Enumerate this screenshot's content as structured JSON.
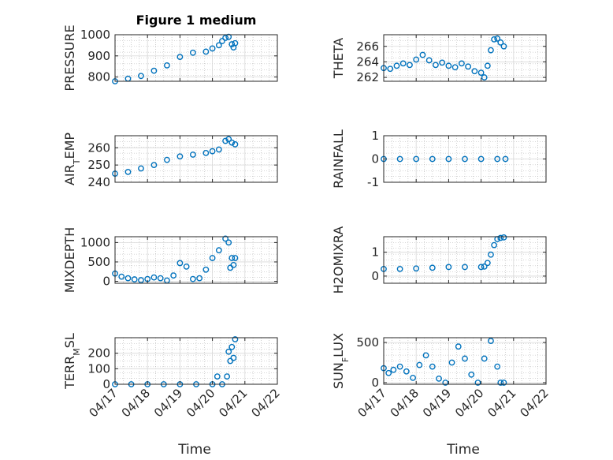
{
  "figure": {
    "title": "Figure 1 medium",
    "xlabel": "Time",
    "marker_color": "#0072BD",
    "grid_color": "#b0b0b0"
  },
  "chart_data": [
    {
      "type": "scatter",
      "ylabel": "PRESSURE",
      "ylim": [
        780,
        1000
      ],
      "yticks": [
        800,
        900,
        1000
      ],
      "x": [
        0.0,
        0.4,
        0.8,
        1.2,
        1.6,
        2.0,
        2.4,
        2.8,
        3.0,
        3.2,
        3.3,
        3.4,
        3.5,
        3.6,
        3.65,
        3.7
      ],
      "y": [
        780,
        792,
        805,
        830,
        855,
        895,
        915,
        920,
        935,
        950,
        970,
        985,
        990,
        955,
        940,
        960
      ]
    },
    {
      "type": "scatter",
      "ylabel": "THETA",
      "ylim": [
        261.5,
        267.5
      ],
      "yticks": [
        262,
        264,
        266
      ],
      "x": [
        0.0,
        0.2,
        0.4,
        0.6,
        0.8,
        1.0,
        1.2,
        1.4,
        1.6,
        1.8,
        2.0,
        2.2,
        2.4,
        2.6,
        2.8,
        3.0,
        3.1,
        3.2,
        3.3,
        3.4,
        3.5,
        3.6,
        3.7
      ],
      "y": [
        263.2,
        263.1,
        263.5,
        263.8,
        263.6,
        264.3,
        264.9,
        264.2,
        263.6,
        263.9,
        263.5,
        263.3,
        263.8,
        263.4,
        262.8,
        262.6,
        262.0,
        263.5,
        265.5,
        266.9,
        267.0,
        266.5,
        266.0
      ]
    },
    {
      "type": "scatter",
      "ylabel": "AIR_TEMP",
      "ylim": [
        240,
        267
      ],
      "yticks": [
        240,
        250,
        260
      ],
      "x": [
        0.0,
        0.4,
        0.8,
        1.2,
        1.6,
        2.0,
        2.4,
        2.8,
        3.0,
        3.2,
        3.4,
        3.5,
        3.6,
        3.7
      ],
      "y": [
        245,
        246,
        248,
        250,
        253,
        255,
        256,
        257,
        258,
        259,
        264,
        265,
        263,
        262
      ]
    },
    {
      "type": "scatter",
      "ylabel": "RAINFALL",
      "ylim": [
        -1,
        1
      ],
      "yticks": [
        -1,
        0,
        1
      ],
      "x": [
        0.0,
        0.5,
        1.0,
        1.5,
        2.0,
        2.5,
        3.0,
        3.5,
        3.75
      ],
      "y": [
        0,
        0,
        0,
        0,
        0,
        0,
        0,
        0,
        0
      ]
    },
    {
      "type": "scatter",
      "ylabel": "MIXDEPTH",
      "ylim": [
        -50,
        1150
      ],
      "yticks": [
        0,
        500,
        1000
      ],
      "x": [
        0.0,
        0.2,
        0.4,
        0.6,
        0.8,
        1.0,
        1.2,
        1.4,
        1.6,
        1.8,
        2.0,
        2.2,
        2.4,
        2.6,
        2.8,
        3.0,
        3.2,
        3.4,
        3.5,
        3.55,
        3.6,
        3.65,
        3.7
      ],
      "y": [
        200,
        120,
        80,
        50,
        30,
        60,
        100,
        80,
        20,
        150,
        470,
        380,
        60,
        80,
        300,
        600,
        800,
        1100,
        1000,
        350,
        600,
        420,
        600
      ]
    },
    {
      "type": "scatter",
      "ylabel": "H2OMIXRA",
      "ylim": [
        -0.3,
        1.65
      ],
      "yticks": [
        0,
        1
      ],
      "x": [
        0.0,
        0.5,
        1.0,
        1.5,
        2.0,
        2.5,
        3.0,
        3.1,
        3.2,
        3.3,
        3.4,
        3.5,
        3.6,
        3.7
      ],
      "y": [
        0.3,
        0.3,
        0.32,
        0.35,
        0.38,
        0.38,
        0.38,
        0.4,
        0.55,
        0.9,
        1.3,
        1.55,
        1.6,
        1.62
      ]
    },
    {
      "type": "scatter",
      "ylabel": "TERR_MSL",
      "ylim": [
        0,
        300
      ],
      "yticks": [
        0,
        100,
        200
      ],
      "x": [
        0.0,
        0.5,
        1.0,
        1.5,
        2.0,
        2.5,
        3.0,
        3.15,
        3.3,
        3.45,
        3.5,
        3.55,
        3.6,
        3.65,
        3.7
      ],
      "y": [
        0,
        0,
        0,
        0,
        0,
        0,
        0,
        50,
        0,
        50,
        210,
        150,
        240,
        170,
        290
      ]
    },
    {
      "type": "scatter",
      "ylabel": "SUN_FLUX",
      "ylim": [
        -20,
        560
      ],
      "yticks": [
        0,
        500
      ],
      "x": [
        0.0,
        0.15,
        0.3,
        0.5,
        0.7,
        0.9,
        1.1,
        1.3,
        1.5,
        1.7,
        1.9,
        2.1,
        2.3,
        2.5,
        2.7,
        2.9,
        3.1,
        3.3,
        3.5,
        3.6,
        3.7
      ],
      "y": [
        180,
        120,
        160,
        200,
        140,
        60,
        220,
        340,
        200,
        50,
        0,
        250,
        450,
        300,
        100,
        0,
        300,
        520,
        200,
        0,
        0
      ]
    }
  ],
  "xaxis": {
    "range": [
      0,
      5
    ],
    "ticks": [
      "04/17",
      "04/18",
      "04/19",
      "04/20",
      "04/21",
      "04/22"
    ]
  }
}
